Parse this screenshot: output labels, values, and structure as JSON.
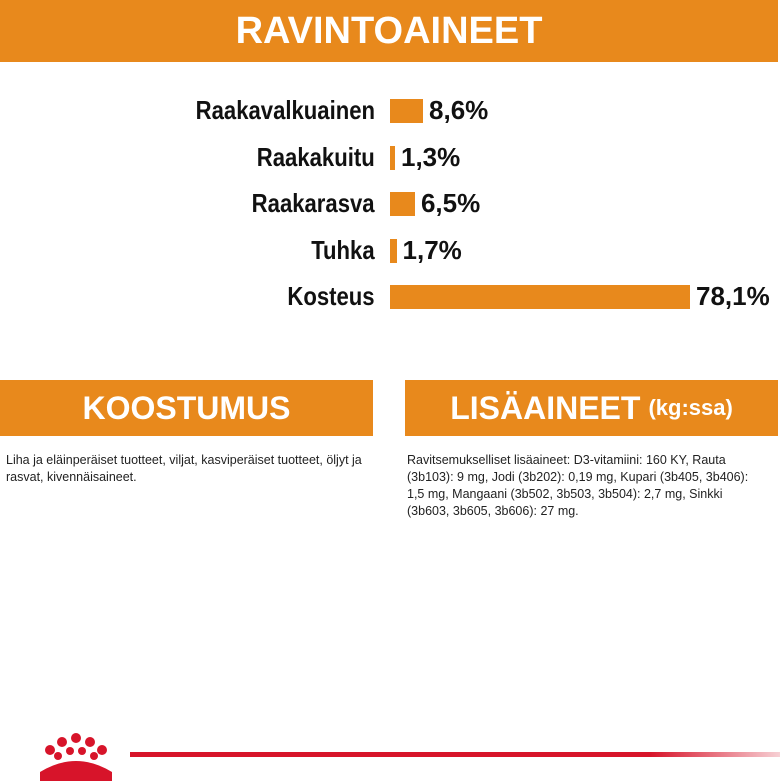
{
  "header": {
    "title": "RAVINTOAINEET"
  },
  "chart_data": {
    "type": "bar",
    "orientation": "horizontal",
    "categories": [
      "Raakavalkuainen",
      "Raakakuitu",
      "Raakarasva",
      "Tuhka",
      "Kosteus"
    ],
    "values": [
      8.6,
      1.3,
      6.5,
      1.7,
      78.1
    ],
    "value_labels": [
      "8,6%",
      "1,3%",
      "6,5%",
      "1,7%",
      "78,1%"
    ],
    "color": "#e8891c"
  },
  "composition": {
    "title": "KOOSTUMUS",
    "text": "Liha ja eläinperäiset tuotteet, viljat, kasviperäiset tuotteet, öljyt ja rasvat, kivennäisaineet."
  },
  "additives": {
    "title": "LISÄAINEET",
    "unit": "(kg:ssa)",
    "text": "Ravitsemukselliset lisäaineet: D3-vitamiini: 160 KY, Rauta (3b103): 9 mg, Jodi (3b202): 0,19 mg, Kupari (3b405, 3b406): 1,5 mg, Mangaani (3b502, 3b503, 3b504): 2,7 mg, Sinkki (3b603, 3b605, 3b606): 27 mg."
  }
}
